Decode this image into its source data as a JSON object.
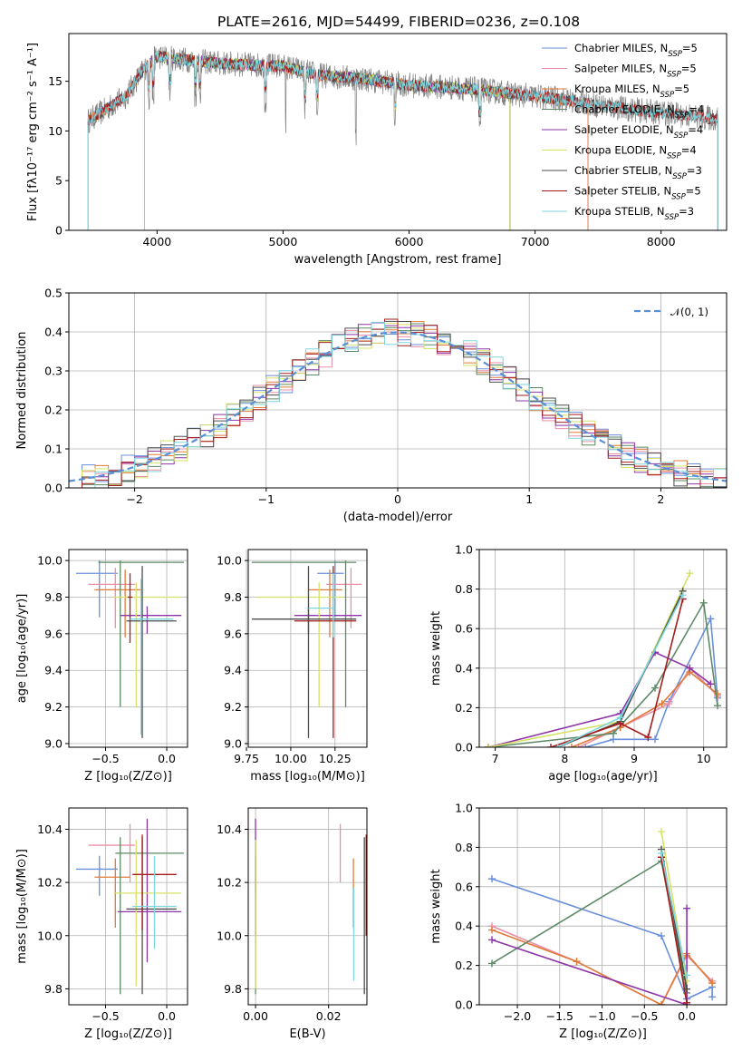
{
  "figure": {
    "title": "PLATE=2616, MJD=54499, FIBERID=0236, z=0.108",
    "colors": {
      "chabrier_miles": "#6a8fdb",
      "salpeter_miles": "#e98fa8",
      "kroupa_miles": "#e07b39",
      "chabrier_elodie": "#5d8a66",
      "salpeter_elodie": "#8e35a8",
      "kroupa_elodie": "#d6e266",
      "chabrier_stelib": "#4d4d4d",
      "salpeter_stelib": "#a61c1c",
      "kroupa_stelib": "#7dd6dd",
      "spectrum_data": "#808080",
      "gaussian": "#5b8fd6",
      "grid": "#b0b0b0"
    }
  },
  "chart_data": [
    {
      "id": "spectrum",
      "type": "line",
      "title": "PLATE=2616, MJD=54499, FIBERID=0236, z=0.108",
      "xlabel": "wavelength [Angstrom, rest frame]",
      "ylabel": "Flux [fλ10⁻¹⁷ erg cm⁻² s⁻¹ A⁻¹]",
      "xlim": [
        3300,
        8520
      ],
      "ylim": [
        0,
        19.8
      ],
      "xticks": [
        4000,
        5000,
        6000,
        7000,
        8000
      ],
      "yticks": [
        0,
        5,
        10,
        15
      ],
      "grid": false,
      "legend": "top-right",
      "continuum": {
        "x": [
          3450,
          3600,
          3750,
          3900,
          4000,
          4200,
          4500,
          4800,
          5000,
          5300,
          5600,
          6000,
          6300,
          6600,
          6900,
          7200,
          7500,
          7800,
          8100,
          8450
        ],
        "y": [
          11,
          12.2,
          13.5,
          16.3,
          17.5,
          17.2,
          16.8,
          16.6,
          16.5,
          15.6,
          15.3,
          14.6,
          14.4,
          14.1,
          13.6,
          13.2,
          12.6,
          12.1,
          11.7,
          11.2
        ]
      },
      "series": [
        {
          "name": "Chabrier MILES",
          "nssp": "5",
          "color_key": "chabrier_miles",
          "xmin": 3450,
          "xmax": 7420
        },
        {
          "name": "Salpeter MILES",
          "nssp": "5",
          "color_key": "salpeter_miles",
          "xmin": 3450,
          "xmax": 7420
        },
        {
          "name": "Kroupa MILES",
          "nssp": "5",
          "color_key": "kroupa_miles",
          "xmin": 3450,
          "xmax": 7420
        },
        {
          "name": "Chabrier ELODIE",
          "nssp": "4",
          "color_key": "chabrier_elodie",
          "xmin": 3900,
          "xmax": 6800
        },
        {
          "name": "Salpeter ELODIE",
          "nssp": "4",
          "color_key": "salpeter_elodie",
          "xmin": 3900,
          "xmax": 6800
        },
        {
          "name": "Kroupa ELODIE",
          "nssp": "4",
          "color_key": "kroupa_elodie",
          "xmin": 3900,
          "xmax": 6800
        },
        {
          "name": "Chabrier STELIB",
          "nssp": "3",
          "color_key": "chabrier_stelib",
          "xmin": 3450,
          "xmax": 8450
        },
        {
          "name": "Salpeter STELIB",
          "nssp": "5",
          "color_key": "salpeter_stelib",
          "xmin": 3450,
          "xmax": 8450
        },
        {
          "name": "Kroupa STELIB",
          "nssp": "3",
          "color_key": "kroupa_stelib",
          "xmin": 3450,
          "xmax": 8450
        }
      ]
    },
    {
      "id": "residuals",
      "type": "line",
      "xlabel": "(data-model)/error",
      "ylabel": "Normed distribution",
      "xlim": [
        -2.5,
        2.5
      ],
      "ylim": [
        0,
        0.5
      ],
      "xticks": [
        -2,
        -1,
        0,
        1,
        2
      ],
      "xticklabels": [
        "−2",
        "−1",
        "0",
        "1",
        "2"
      ],
      "yticks": [
        0.0,
        0.1,
        0.2,
        0.3,
        0.4,
        0.5
      ],
      "yticklabels": [
        "0.0",
        "0.1",
        "0.2",
        "0.3",
        "0.4",
        "0.5"
      ],
      "grid": true,
      "legend": "top-right",
      "gaussian_label": "𝒩(0, 1)",
      "histogram_bin_width": 0.1,
      "histograms": "one step histogram per model, 50 bins between -2.5 and 2.5, values close to the N(0,1) density with scatter of about 0.03"
    },
    {
      "id": "age_vs_Z",
      "type": "scatter",
      "xlabel": "Z [log₁₀(Z/Z⊙)]",
      "ylabel": "age  [log₁₀(age/yr)]",
      "xlim": [
        -0.8,
        0.17
      ],
      "ylim": [
        8.98,
        10.06
      ],
      "xticks": [
        -0.5,
        0.0
      ],
      "xticklabels": [
        "−0.5",
        "0.0"
      ],
      "yticks": [
        9.0,
        9.2,
        9.4,
        9.6,
        9.8,
        10.0
      ],
      "yticklabels": [
        "9.0",
        "9.2",
        "9.4",
        "9.6",
        "9.8",
        "10.0"
      ],
      "grid": true,
      "points": [
        {
          "c": "chabrier_miles",
          "x": -0.55,
          "xlo": -0.74,
          "xhi": -0.4,
          "y": 9.93,
          "ylo": 9.69,
          "yhi": 10.0
        },
        {
          "c": "salpeter_miles",
          "x": -0.42,
          "xlo": -0.64,
          "xhi": -0.26,
          "y": 9.87,
          "ylo": 9.63,
          "yhi": 9.96
        },
        {
          "c": "kroupa_miles",
          "x": -0.34,
          "xlo": -0.59,
          "xhi": -0.2,
          "y": 9.84,
          "ylo": 9.58,
          "yhi": 9.95
        },
        {
          "c": "chabrier_elodie",
          "x": -0.38,
          "xlo": -0.56,
          "xhi": 0.14,
          "y": 9.99,
          "ylo": 9.2,
          "yhi": 10.0
        },
        {
          "c": "salpeter_elodie",
          "x": -0.16,
          "xlo": -0.38,
          "xhi": 0.12,
          "y": 9.7,
          "ylo": 9.6,
          "yhi": 9.75
        },
        {
          "c": "kroupa_elodie",
          "x": -0.25,
          "xlo": -0.43,
          "xhi": 0.12,
          "y": 9.8,
          "ylo": 9.2,
          "yhi": 9.88
        },
        {
          "c": "chabrier_stelib",
          "x": -0.2,
          "xlo": -0.33,
          "xhi": 0.08,
          "y": 9.67,
          "ylo": 9.03,
          "yhi": 9.97
        },
        {
          "c": "salpeter_stelib",
          "x": -0.3,
          "xlo": -0.32,
          "xhi": -0.28,
          "y": 9.8,
          "ylo": 9.55,
          "yhi": 9.93
        },
        {
          "c": "kroupa_stelib",
          "x": -0.21,
          "xlo": -0.3,
          "xhi": 0.05,
          "y": 9.68,
          "ylo": 9.05,
          "yhi": 9.9
        }
      ]
    },
    {
      "id": "age_vs_mass",
      "type": "scatter",
      "xlabel": "mass [log₁₀(M/M⊙)]",
      "ylabel": "",
      "xlim": [
        9.76,
        10.43
      ],
      "ylim": [
        8.98,
        10.06
      ],
      "xticks": [
        9.75,
        10.0,
        10.25
      ],
      "xticklabels": [
        "9.75",
        "10.00",
        "10.25"
      ],
      "yticks": [
        9.0,
        9.2,
        9.4,
        9.6,
        9.8,
        10.0
      ],
      "yticklabels": [
        "9.0",
        "9.2",
        "9.4",
        "9.6",
        "9.8",
        "10.0"
      ],
      "grid": true,
      "points": [
        {
          "c": "chabrier_miles",
          "x": 10.25,
          "xlo": 10.15,
          "xhi": 10.3,
          "y": 9.93,
          "ylo": 9.69,
          "yhi": 10.0
        },
        {
          "c": "salpeter_miles",
          "x": 10.34,
          "xlo": 10.2,
          "xhi": 10.4,
          "y": 9.87,
          "ylo": 9.63,
          "yhi": 9.96
        },
        {
          "c": "kroupa_miles",
          "x": 10.22,
          "xlo": 10.1,
          "xhi": 10.29,
          "y": 9.84,
          "ylo": 9.58,
          "yhi": 9.95
        },
        {
          "c": "chabrier_elodie",
          "x": 10.31,
          "xlo": 9.78,
          "xhi": 10.37,
          "y": 9.99,
          "ylo": 9.2,
          "yhi": 10.0
        },
        {
          "c": "salpeter_elodie",
          "x": 10.1,
          "xlo": 10.02,
          "xhi": 10.4,
          "y": 9.7,
          "ylo": 9.6,
          "yhi": 9.75
        },
        {
          "c": "kroupa_elodie",
          "x": 10.16,
          "xlo": 9.81,
          "xhi": 10.3,
          "y": 9.8,
          "ylo": 9.2,
          "yhi": 9.88
        },
        {
          "c": "chabrier_stelib",
          "x": 10.1,
          "xlo": 9.78,
          "xhi": 10.37,
          "y": 9.68,
          "ylo": 9.03,
          "yhi": 9.97
        },
        {
          "c": "salpeter_stelib",
          "x": 10.24,
          "xlo": 10.02,
          "xhi": 10.37,
          "y": 9.67,
          "ylo": 9.03,
          "yhi": 9.97
        },
        {
          "c": "kroupa_stelib",
          "x": 10.24,
          "xlo": 10.1,
          "xhi": 10.25,
          "y": 9.74,
          "ylo": 9.58,
          "yhi": 9.93
        }
      ]
    },
    {
      "id": "weight_vs_age",
      "type": "line",
      "xlabel": "age  [log₁₀(age/yr)]",
      "ylabel": "mass weight",
      "xlim": [
        6.77,
        10.33
      ],
      "ylim": [
        0,
        1.0
      ],
      "xticks": [
        7,
        8,
        9,
        10
      ],
      "xticklabels": [
        "7",
        "8",
        "9",
        "10"
      ],
      "yticks": [
        0.0,
        0.2,
        0.4,
        0.6,
        0.8,
        1.0
      ],
      "yticklabels": [
        "0.0",
        "0.2",
        "0.4",
        "0.6",
        "0.8",
        "1.0"
      ],
      "grid": true,
      "series": [
        {
          "c": "chabrier_miles",
          "x": [
            8.3,
            8.7,
            9.3,
            9.5,
            10.1,
            10.2
          ],
          "y": [
            0.0,
            0.04,
            0.04,
            0.23,
            0.65,
            0.25
          ]
        },
        {
          "c": "salpeter_miles",
          "x": [
            8.2,
            8.8,
            9.5,
            9.8,
            10.2
          ],
          "y": [
            0.0,
            0.1,
            0.22,
            0.4,
            0.26
          ]
        },
        {
          "c": "kroupa_miles",
          "x": [
            8.1,
            8.8,
            9.4,
            9.8,
            10.2
          ],
          "y": [
            0.0,
            0.1,
            0.22,
            0.38,
            0.27
          ]
        },
        {
          "c": "chabrier_elodie",
          "x": [
            6.9,
            8.7,
            9.3,
            10.0,
            10.2
          ],
          "y": [
            0.0,
            0.07,
            0.3,
            0.73,
            0.21
          ]
        },
        {
          "c": "salpeter_elodie",
          "x": [
            6.9,
            8.8,
            9.3,
            9.8,
            10.1
          ],
          "y": [
            0.0,
            0.17,
            0.48,
            0.4,
            0.32
          ]
        },
        {
          "c": "kroupa_elodie",
          "x": [
            6.9,
            8.8,
            9.8
          ],
          "y": [
            0.0,
            0.13,
            0.88
          ]
        },
        {
          "c": "chabrier_stelib",
          "x": [
            7.9,
            8.8,
            9.7
          ],
          "y": [
            0.0,
            0.13,
            0.79
          ]
        },
        {
          "c": "salpeter_stelib",
          "x": [
            7.8,
            8.8,
            9.2,
            9.7
          ],
          "y": [
            0.0,
            0.12,
            0.05,
            0.75
          ]
        },
        {
          "c": "kroupa_stelib",
          "x": [
            7.9,
            8.8,
            9.7
          ],
          "y": [
            0.0,
            0.15,
            0.77
          ]
        }
      ]
    },
    {
      "id": "mass_vs_Z",
      "type": "scatter",
      "xlabel": "Z [log₁₀(Z/Z⊙)]",
      "ylabel": "mass [log₁₀(M/M⊙)]",
      "xlim": [
        -0.8,
        0.17
      ],
      "ylim": [
        9.74,
        10.48
      ],
      "xticks": [
        -0.5,
        0.0
      ],
      "xticklabels": [
        "−0.5",
        "0.0"
      ],
      "yticks": [
        9.8,
        10.0,
        10.2,
        10.4
      ],
      "yticklabels": [
        "9.8",
        "10.0",
        "10.2",
        "10.4"
      ],
      "grid": true,
      "points": [
        {
          "c": "chabrier_miles",
          "x": -0.55,
          "xlo": -0.74,
          "xhi": -0.4,
          "y": 10.25,
          "ylo": 10.15,
          "yhi": 10.3
        },
        {
          "c": "salpeter_miles",
          "x": -0.3,
          "xlo": -0.64,
          "xhi": -0.26,
          "y": 10.34,
          "ylo": 10.2,
          "yhi": 10.42
        },
        {
          "c": "kroupa_miles",
          "x": -0.42,
          "xlo": -0.59,
          "xhi": -0.3,
          "y": 10.22,
          "ylo": 10.03,
          "yhi": 10.29
        },
        {
          "c": "chabrier_elodie",
          "x": -0.38,
          "xlo": -0.42,
          "xhi": 0.14,
          "y": 10.31,
          "ylo": 9.78,
          "yhi": 10.37
        },
        {
          "c": "salpeter_elodie",
          "x": -0.16,
          "xlo": -0.4,
          "xhi": 0.12,
          "y": 10.09,
          "ylo": 9.9,
          "yhi": 10.44
        },
        {
          "c": "kroupa_elodie",
          "x": -0.25,
          "xlo": -0.43,
          "xhi": 0.12,
          "y": 10.16,
          "ylo": 9.81,
          "yhi": 10.36
        },
        {
          "c": "chabrier_stelib",
          "x": -0.2,
          "xlo": -0.33,
          "xhi": 0.08,
          "y": 10.1,
          "ylo": 9.78,
          "yhi": 10.37
        },
        {
          "c": "salpeter_stelib",
          "x": -0.2,
          "xlo": -0.28,
          "xhi": 0.08,
          "y": 10.23,
          "ylo": 10.02,
          "yhi": 10.38
        },
        {
          "c": "kroupa_stelib",
          "x": -0.1,
          "xlo": -0.28,
          "xhi": 0.08,
          "y": 10.11,
          "ylo": 9.95,
          "yhi": 10.3
        }
      ]
    },
    {
      "id": "mass_vs_ebv",
      "type": "scatter",
      "xlabel": "E(B-V)",
      "ylabel": "",
      "xlim": [
        -0.002,
        0.0305
      ],
      "ylim": [
        9.74,
        10.48
      ],
      "xticks": [
        0.0,
        0.02
      ],
      "xticklabels": [
        "0.00",
        "0.02"
      ],
      "yticks": [
        9.8,
        10.0,
        10.2,
        10.4
      ],
      "yticklabels": [
        "9.8",
        "10.0",
        "10.2",
        "10.4"
      ],
      "grid": true,
      "points": [
        {
          "c": "chabrier_miles",
          "x": 0.0,
          "y": 10.25,
          "ylo": 10.15,
          "yhi": 10.3
        },
        {
          "c": "salpeter_miles",
          "x": 0.0232,
          "y": 10.32,
          "ylo": 10.2,
          "yhi": 10.42
        },
        {
          "c": "kroupa_miles",
          "x": 0.0268,
          "y": 10.2,
          "ylo": 10.03,
          "yhi": 10.29
        },
        {
          "c": "chabrier_elodie",
          "x": 0.0,
          "y": 10.0,
          "ylo": 9.78,
          "yhi": 10.35
        },
        {
          "c": "salpeter_elodie",
          "x": 0.0,
          "y": 10.3,
          "ylo": 10.0,
          "yhi": 10.44
        },
        {
          "c": "kroupa_elodie",
          "x": 0.0,
          "y": 10.0,
          "ylo": 9.8,
          "yhi": 10.36
        },
        {
          "c": "chabrier_stelib",
          "x": 0.0298,
          "y": 10.1,
          "ylo": 9.78,
          "yhi": 10.37
        },
        {
          "c": "salpeter_stelib",
          "x": 0.0303,
          "y": 10.2,
          "ylo": 10.0,
          "yhi": 10.38
        },
        {
          "c": "kroupa_stelib",
          "x": 0.0269,
          "y": 10.0,
          "ylo": 9.83,
          "yhi": 10.18
        }
      ]
    },
    {
      "id": "weight_vs_Z",
      "type": "line",
      "xlabel": "Z [log₁₀(Z/Z⊙)]",
      "ylabel": "mass weight",
      "xlim": [
        -2.45,
        0.47
      ],
      "ylim": [
        0,
        1.0
      ],
      "xticks": [
        -2.0,
        -1.5,
        -1.0,
        -0.5,
        0.0
      ],
      "xticklabels": [
        "−2.0",
        "−1.5",
        "−1.0",
        "−0.5",
        "0.0"
      ],
      "yticks": [
        0.0,
        0.2,
        0.4,
        0.6,
        0.8,
        1.0
      ],
      "yticklabels": [
        "0.0",
        "0.2",
        "0.4",
        "0.6",
        "0.8",
        "1.0"
      ],
      "grid": true,
      "series": [
        {
          "c": "chabrier_miles",
          "x": [
            -2.3,
            -0.3,
            0.0,
            0.3,
            0.3
          ],
          "y": [
            0.64,
            0.35,
            0.03,
            0.09,
            0.04
          ]
        },
        {
          "c": "salpeter_miles",
          "x": [
            -2.3,
            -1.3,
            -0.3,
            0.0,
            0.3
          ],
          "y": [
            0.4,
            0.22,
            0.0,
            0.25,
            0.12
          ]
        },
        {
          "c": "kroupa_miles",
          "x": [
            -2.3,
            -1.3,
            -0.3,
            0.0,
            0.3
          ],
          "y": [
            0.38,
            0.22,
            0.0,
            0.26,
            0.11
          ]
        },
        {
          "c": "chabrier_elodie",
          "x": [
            -2.3,
            -0.3,
            0.0
          ],
          "y": [
            0.21,
            0.73,
            0.06
          ]
        },
        {
          "c": "salpeter_elodie",
          "x": [
            -2.3,
            0.0,
            0.0
          ],
          "y": [
            0.33,
            0.0,
            0.49
          ]
        },
        {
          "c": "kroupa_elodie",
          "x": [
            -0.3,
            0.0
          ],
          "y": [
            0.88,
            0.12
          ]
        },
        {
          "c": "chabrier_stelib",
          "x": [
            -0.3,
            0.0
          ],
          "y": [
            0.79,
            0.08
          ]
        },
        {
          "c": "salpeter_stelib",
          "x": [
            -0.3,
            0.0
          ],
          "y": [
            0.75,
            0.01
          ]
        },
        {
          "c": "kroupa_stelib",
          "x": [
            -0.3,
            0.0
          ],
          "y": [
            0.77,
            0.15
          ]
        }
      ]
    }
  ]
}
